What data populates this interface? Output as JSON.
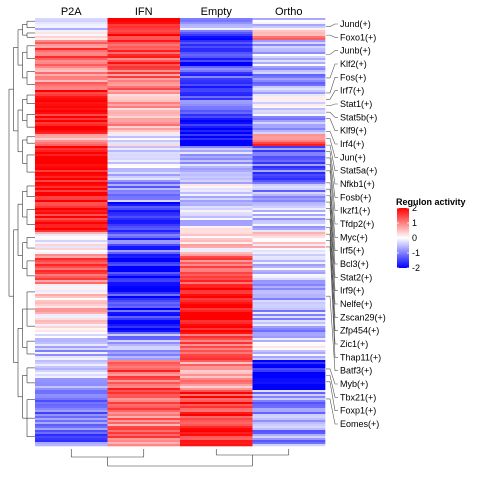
{
  "chart_data": {
    "type": "heatmap",
    "columns": [
      "P2A",
      "IFN",
      "Empty",
      "Ortho"
    ],
    "legend": {
      "title": "Regulon activity",
      "ticks": [
        2,
        1,
        0,
        -1,
        -2
      ],
      "range": [
        -2,
        2
      ],
      "placement": "right",
      "colors": {
        "low": "#0000ff",
        "mid": "#ffffff",
        "high": "#ff0000"
      }
    },
    "row_labels": [
      {
        "label": "Jund(+)",
        "row": 0.02
      },
      {
        "label": "Foxo1(+)",
        "row": 0.04
      },
      {
        "label": "Junb(+)",
        "row": 0.085
      },
      {
        "label": "Klf2(+)",
        "row": 0.14
      },
      {
        "label": "Fos(+)",
        "row": 0.175
      },
      {
        "label": "Irf7(+)",
        "row": 0.19
      },
      {
        "label": "Stat1(+)",
        "row": 0.205
      },
      {
        "label": "Stat5b(+)",
        "row": 0.22
      },
      {
        "label": "Klf9(+)",
        "row": 0.235
      },
      {
        "label": "Irf4(+)",
        "row": 0.265
      },
      {
        "label": "Jun(+)",
        "row": 0.282
      },
      {
        "label": "Stat5a(+)",
        "row": 0.297
      },
      {
        "label": "Nfkb1(+)",
        "row": 0.312
      },
      {
        "label": "Fosb(+)",
        "row": 0.327
      },
      {
        "label": "Ikzf1(+)",
        "row": 0.342
      },
      {
        "label": "Tfdp2(+)",
        "row": 0.357
      },
      {
        "label": "Myc(+)",
        "row": 0.385
      },
      {
        "label": "Irf5(+)",
        "row": 0.4
      },
      {
        "label": "Bcl3(+)",
        "row": 0.415
      },
      {
        "label": "Stat2(+)",
        "row": 0.43
      },
      {
        "label": "Irf9(+)",
        "row": 0.445
      },
      {
        "label": "Nelfe(+)",
        "row": 0.47
      },
      {
        "label": "Zscan29(+)",
        "row": 0.49
      },
      {
        "label": "Zfp454(+)",
        "row": 0.505
      },
      {
        "label": "Zic1(+)",
        "row": 0.52
      },
      {
        "label": "Thap11(+)",
        "row": 0.535
      },
      {
        "label": "Batf3(+)",
        "row": 0.65
      },
      {
        "label": "Myb(+)",
        "row": 0.82
      },
      {
        "label": "Tbx21(+)",
        "row": 0.835
      },
      {
        "label": "Foxp1(+)",
        "row": 0.85
      },
      {
        "label": "Eomes(+)",
        "row": 0.89
      }
    ],
    "blocks": [
      {
        "from": 0.0,
        "to": 0.03,
        "values": [
          -0.3,
          2.0,
          -0.6,
          -0.4
        ]
      },
      {
        "from": 0.03,
        "to": 0.05,
        "values": [
          0.3,
          1.5,
          -1.5,
          0.8
        ]
      },
      {
        "from": 0.05,
        "to": 0.11,
        "values": [
          1.2,
          1.4,
          -1.6,
          -0.5
        ]
      },
      {
        "from": 0.11,
        "to": 0.17,
        "values": [
          1.0,
          1.2,
          -1.3,
          -0.7
        ]
      },
      {
        "from": 0.17,
        "to": 0.21,
        "values": [
          1.9,
          0.5,
          -1.2,
          -0.3
        ]
      },
      {
        "from": 0.21,
        "to": 0.27,
        "values": [
          1.9,
          0.7,
          -1.6,
          -0.6
        ]
      },
      {
        "from": 0.27,
        "to": 0.3,
        "values": [
          0.8,
          -0.2,
          -2.0,
          1.3
        ]
      },
      {
        "from": 0.3,
        "to": 0.38,
        "values": [
          2.0,
          -0.4,
          -0.5,
          -1.2
        ]
      },
      {
        "from": 0.38,
        "to": 0.43,
        "values": [
          2.0,
          -0.8,
          -0.3,
          -0.8
        ]
      },
      {
        "from": 0.43,
        "to": 0.5,
        "values": [
          1.8,
          -1.6,
          -0.2,
          -0.4
        ]
      },
      {
        "from": 0.5,
        "to": 0.55,
        "values": [
          0.2,
          -1.3,
          0.4,
          0.3
        ]
      },
      {
        "from": 0.55,
        "to": 0.62,
        "values": [
          1.2,
          -1.8,
          1.2,
          -0.4
        ]
      },
      {
        "from": 0.62,
        "to": 0.74,
        "values": [
          0.3,
          -1.6,
          2.0,
          -0.6
        ]
      },
      {
        "from": 0.74,
        "to": 0.8,
        "values": [
          -0.5,
          -0.8,
          1.3,
          -0.3
        ]
      },
      {
        "from": 0.8,
        "to": 0.87,
        "values": [
          -0.6,
          1.3,
          0.9,
          -1.9
        ]
      },
      {
        "from": 0.87,
        "to": 1.0,
        "values": [
          -1.1,
          1.1,
          1.6,
          -0.8
        ]
      }
    ]
  }
}
